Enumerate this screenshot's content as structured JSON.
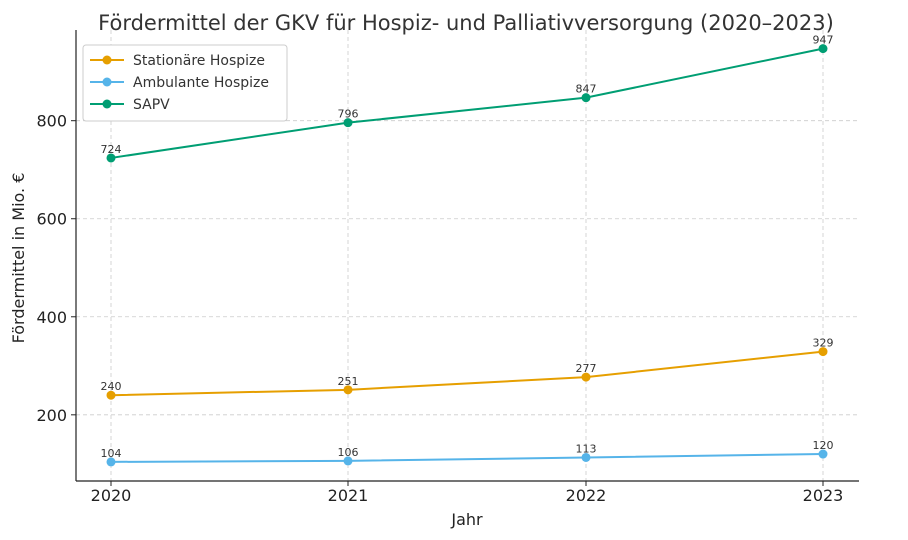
{
  "chart_data": {
    "type": "line",
    "title": "Fördermittel der GKV für Hospiz- und Palliativversorgung (2020–2023)",
    "xlabel": "Jahr",
    "ylabel": "Fördermittel in Mio. €",
    "categories": [
      "2020",
      "2021",
      "2022",
      "2023"
    ],
    "ylim": [
      65,
      985
    ],
    "yticks": [
      200,
      400,
      600,
      800
    ],
    "grid": true,
    "legend_position": "top-left",
    "series": [
      {
        "name": "Stationäre Hospize",
        "values": [
          240,
          251,
          277,
          329
        ],
        "color": "#E69F00"
      },
      {
        "name": "Ambulante Hospize",
        "values": [
          104,
          106,
          113,
          120
        ],
        "color": "#56B4E9"
      },
      {
        "name": "SAPV",
        "values": [
          724,
          796,
          847,
          947
        ],
        "color": "#009E73"
      }
    ]
  }
}
